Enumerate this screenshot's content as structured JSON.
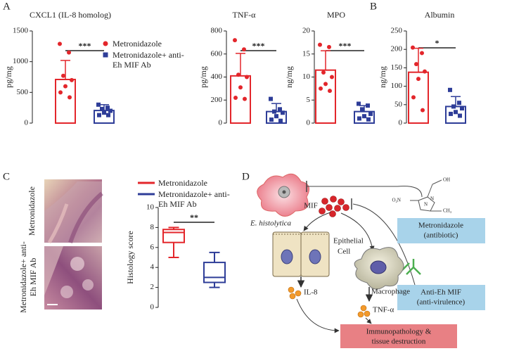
{
  "panels": [
    "A",
    "B",
    "C",
    "D"
  ],
  "micrograph": {
    "labels": [
      "Metronidazole",
      "Metronidazole+ anti-Eh MIF Ab"
    ]
  },
  "chart_data": [
    {
      "type": "bar",
      "title": "CXCL1 (IL-8 homolog)",
      "ylabel": "pg/mg",
      "ylim": [
        0,
        1500
      ],
      "yticks": [
        0,
        500,
        1000,
        1500
      ],
      "significance": "***",
      "series": [
        {
          "name": "Metronidazole",
          "color": "#e3262b",
          "marker": "circle",
          "mean": 710,
          "error": 310,
          "points": [
            1290,
            1150,
            770,
            700,
            600,
            500,
            420
          ]
        },
        {
          "name": "Metronidazole+ anti-Eh MIF Ab",
          "color": "#2e3d98",
          "marker": "square",
          "mean": 205,
          "error": 95,
          "points": [
            300,
            250,
            230,
            200,
            170,
            130,
            130
          ]
        }
      ]
    },
    {
      "type": "bar",
      "title": "TNF-α",
      "ylabel": "pg/mg",
      "ylim": [
        0,
        800
      ],
      "yticks": [
        0,
        200,
        400,
        600,
        800
      ],
      "significance": "***",
      "series": [
        {
          "color": "#e3262b",
          "marker": "circle",
          "mean": 410,
          "error": 195,
          "points": [
            720,
            640,
            420,
            400,
            310,
            220,
            210
          ]
        },
        {
          "color": "#2e3d98",
          "marker": "square",
          "mean": 100,
          "error": 70,
          "points": [
            210,
            120,
            100,
            90,
            60,
            30,
            20
          ]
        }
      ]
    },
    {
      "type": "bar",
      "title": "MPO",
      "ylabel": "ng/mg",
      "ylim": [
        0,
        20
      ],
      "yticks": [
        0,
        5,
        10,
        15,
        20
      ],
      "significance": "***",
      "series": [
        {
          "color": "#e3262b",
          "marker": "circle",
          "mean": 11.5,
          "error": 4.2,
          "points": [
            17,
            16.5,
            11,
            10,
            8.5,
            7.5,
            7
          ]
        },
        {
          "color": "#2e3d98",
          "marker": "square",
          "mean": 2.5,
          "error": 1.3,
          "points": [
            4.2,
            3.8,
            3,
            2,
            1.5,
            1,
            0.8
          ]
        }
      ]
    },
    {
      "type": "bar",
      "title": "Albumin",
      "ylabel": "ng/mg",
      "ylim": [
        0,
        250
      ],
      "yticks": [
        0,
        50,
        100,
        150,
        200,
        250
      ],
      "significance": "*",
      "series": [
        {
          "color": "#e3262b",
          "marker": "circle",
          "mean": 138,
          "error": 65,
          "points": [
            205,
            190,
            160,
            140,
            120,
            70,
            35
          ]
        },
        {
          "color": "#2e3d98",
          "marker": "square",
          "mean": 45,
          "error": 27,
          "points": [
            90,
            55,
            45,
            40,
            30,
            25,
            20
          ]
        }
      ]
    },
    {
      "type": "box",
      "ylabel": "Histology score",
      "ylim": [
        0,
        10
      ],
      "yticks": [
        0,
        2,
        4,
        6,
        8,
        10
      ],
      "significance": "**",
      "series": [
        {
          "name": "Metronidazole",
          "color": "#e3262b",
          "min": 5,
          "q1": 6.5,
          "median": 7.5,
          "q3": 7.8,
          "max": 8
        },
        {
          "name": "Metronidazole+ anti-Eh MIF Ab",
          "color": "#2e3d98",
          "min": 2,
          "q1": 2.5,
          "median": 3,
          "q3": 4.5,
          "max": 5.5
        }
      ]
    }
  ],
  "diagram": {
    "organism": "E. histolytica",
    "mif": "MIF",
    "epithelial": [
      "Epithelial",
      "Cell"
    ],
    "il8": "IL-8",
    "macrophage": "Macrophage",
    "tnf": "TNF-α",
    "drug": {
      "formula": [
        "O₂N",
        "N",
        "N",
        "OH",
        "CH₃"
      ],
      "label": [
        "Metronidazole",
        "(antibiotic)"
      ]
    },
    "antibody": [
      "Anti-Eh MIF",
      "(anti-virulence)"
    ],
    "outcome": [
      "Immunopathology &",
      "tissue destruction"
    ]
  }
}
